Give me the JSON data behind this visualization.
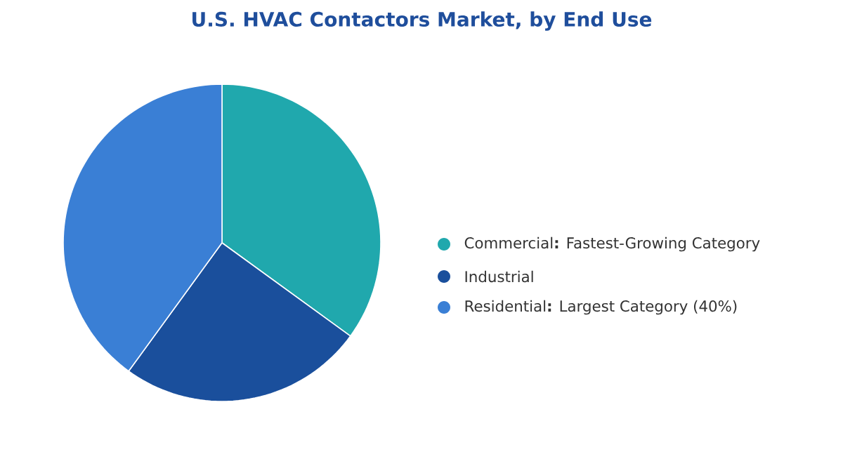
{
  "chart_data": {
    "type": "pie",
    "title": "U.S. HVAC Contactors Market, by End Use",
    "categories": [
      "Commercial**:** Fastest-Growing Category",
      "Industrial",
      "Residential**:** Largest Category (40%)"
    ],
    "values": [
      35,
      25,
      40
    ],
    "colors": [
      "#20a8ad",
      "#1a4f9c",
      "#3a7fd5"
    ],
    "legend": "right"
  }
}
